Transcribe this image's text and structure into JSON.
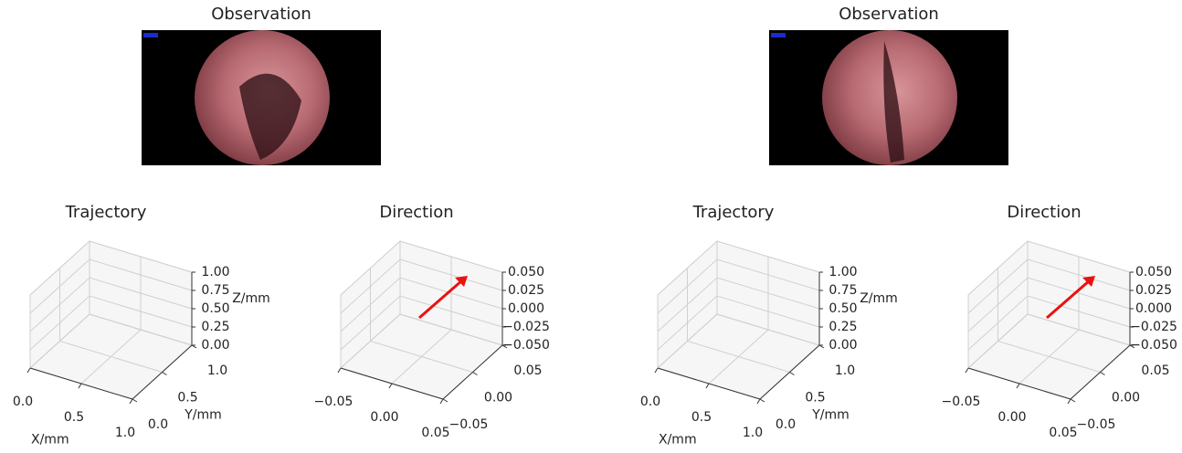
{
  "chart_data": [
    {
      "type": "image",
      "title": "Observation"
    },
    {
      "type": "line3d",
      "title": "Trajectory",
      "xlabel": "X/mm",
      "ylabel": "Y/mm",
      "zlabel": "Z/mm",
      "xlim": [
        0,
        1
      ],
      "ylim": [
        0,
        1
      ],
      "zlim": [
        0,
        1
      ],
      "xticks": [
        {
          "value": 0,
          "label": "0.0"
        },
        {
          "value": 0.5,
          "label": "0.5"
        },
        {
          "value": 1,
          "label": "1.0"
        }
      ],
      "yticks": [
        {
          "value": 0,
          "label": "0.0"
        },
        {
          "value": 0.5,
          "label": "0.5"
        },
        {
          "value": 1,
          "label": "1.0"
        }
      ],
      "zticks": [
        {
          "value": 0,
          "label": "0.00"
        },
        {
          "value": 0.25,
          "label": "0.25"
        },
        {
          "value": 0.5,
          "label": "0.50"
        },
        {
          "value": 0.75,
          "label": "0.75"
        },
        {
          "value": 1,
          "label": "1.00"
        }
      ]
    },
    {
      "type": "quiver3d",
      "title": "Direction",
      "color": "#e8130f",
      "xlim": [
        -0.05,
        0.05
      ],
      "ylim": [
        -0.05,
        0.05
      ],
      "zlim": [
        -0.05,
        0.05
      ],
      "xticks": [
        {
          "value": -0.05,
          "label": "−0.05"
        },
        {
          "value": 0,
          "label": "0.00"
        },
        {
          "value": 0.05,
          "label": "0.05"
        }
      ],
      "yticks": [
        {
          "value": -0.05,
          "label": "−0.05"
        },
        {
          "value": 0,
          "label": "0.00"
        },
        {
          "value": 0.05,
          "label": "0.05"
        }
      ],
      "zticks": [
        {
          "value": -0.05,
          "label": "−0.050"
        },
        {
          "value": -0.025,
          "label": "−0.025"
        },
        {
          "value": 0,
          "label": "0.000"
        },
        {
          "value": 0.025,
          "label": "0.025"
        },
        {
          "value": 0.05,
          "label": "0.050"
        }
      ]
    },
    {
      "type": "image",
      "title": "Observation"
    },
    {
      "type": "line3d",
      "title": "Trajectory",
      "xlabel": "X/mm",
      "ylabel": "Y/mm",
      "zlabel": "Z/mm",
      "xlim": [
        0,
        1
      ],
      "ylim": [
        0,
        1
      ],
      "zlim": [
        0,
        1
      ],
      "xticks": [
        {
          "value": 0,
          "label": "0.0"
        },
        {
          "value": 0.5,
          "label": "0.5"
        },
        {
          "value": 1,
          "label": "1.0"
        }
      ],
      "yticks": [
        {
          "value": 0,
          "label": "0.0"
        },
        {
          "value": 0.5,
          "label": "0.5"
        },
        {
          "value": 1,
          "label": "1.0"
        }
      ],
      "zticks": [
        {
          "value": 0,
          "label": "0.00"
        },
        {
          "value": 0.25,
          "label": "0.25"
        },
        {
          "value": 0.5,
          "label": "0.50"
        },
        {
          "value": 0.75,
          "label": "0.75"
        },
        {
          "value": 1,
          "label": "1.00"
        }
      ]
    },
    {
      "type": "quiver3d",
      "title": "Direction",
      "color": "#e8130f",
      "xlim": [
        -0.05,
        0.05
      ],
      "ylim": [
        -0.05,
        0.05
      ],
      "zlim": [
        -0.05,
        0.05
      ],
      "xticks": [
        {
          "value": -0.05,
          "label": "−0.05"
        },
        {
          "value": 0,
          "label": "0.00"
        },
        {
          "value": 0.05,
          "label": "0.05"
        }
      ],
      "yticks": [
        {
          "value": -0.05,
          "label": "−0.05"
        },
        {
          "value": 0,
          "label": "0.00"
        },
        {
          "value": 0.05,
          "label": "0.05"
        }
      ],
      "zticks": [
        {
          "value": -0.05,
          "label": "−0.050"
        },
        {
          "value": -0.025,
          "label": "−0.025"
        },
        {
          "value": 0,
          "label": "0.000"
        },
        {
          "value": 0.025,
          "label": "0.025"
        },
        {
          "value": 0.05,
          "label": "0.050"
        }
      ]
    }
  ]
}
